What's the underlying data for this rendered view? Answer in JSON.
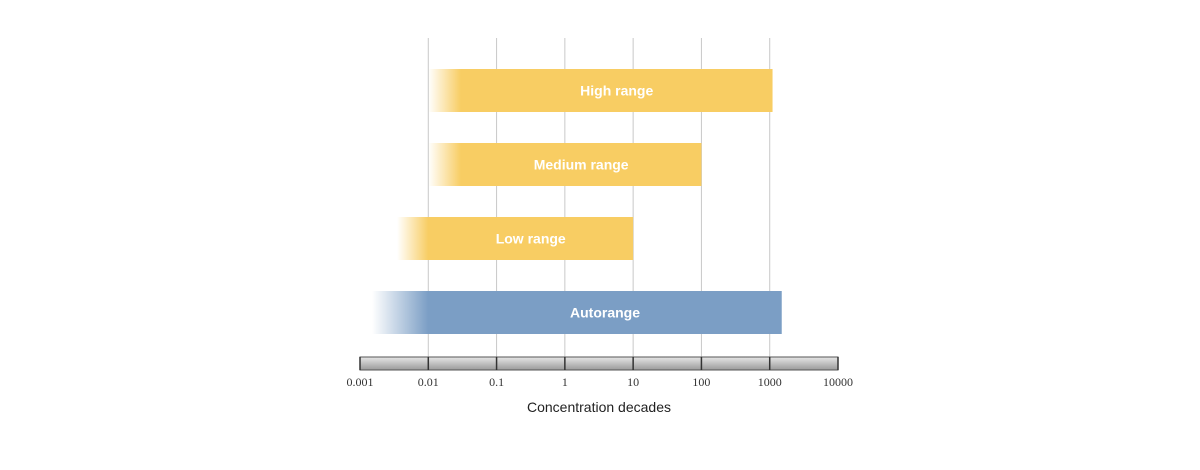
{
  "chart_data": {
    "type": "bar",
    "orientation": "horizontal",
    "scale": "log",
    "xlim": [
      0.001,
      10000
    ],
    "xlabel": "Concentration decades",
    "tick_labels": [
      "0.001",
      "0.01",
      "0.1",
      "1",
      "10",
      "100",
      "1000",
      "10000"
    ],
    "grid": true,
    "bars": [
      {
        "label": "High range",
        "start": 0.03,
        "end": 1100,
        "fade_from": 0.01,
        "color": "#f8cd63"
      },
      {
        "label": "Medium range",
        "start": 0.03,
        "end": 100,
        "fade_from": 0.01,
        "color": "#f8cd63"
      },
      {
        "label": "Low range",
        "start": 0.01,
        "end": 10,
        "fade_from": 0.0035,
        "color": "#f8cd63"
      },
      {
        "label": "Autorange",
        "start": 0.01,
        "end": 1500,
        "fade_from": 0.0015,
        "color": "#7b9ec5"
      }
    ]
  }
}
